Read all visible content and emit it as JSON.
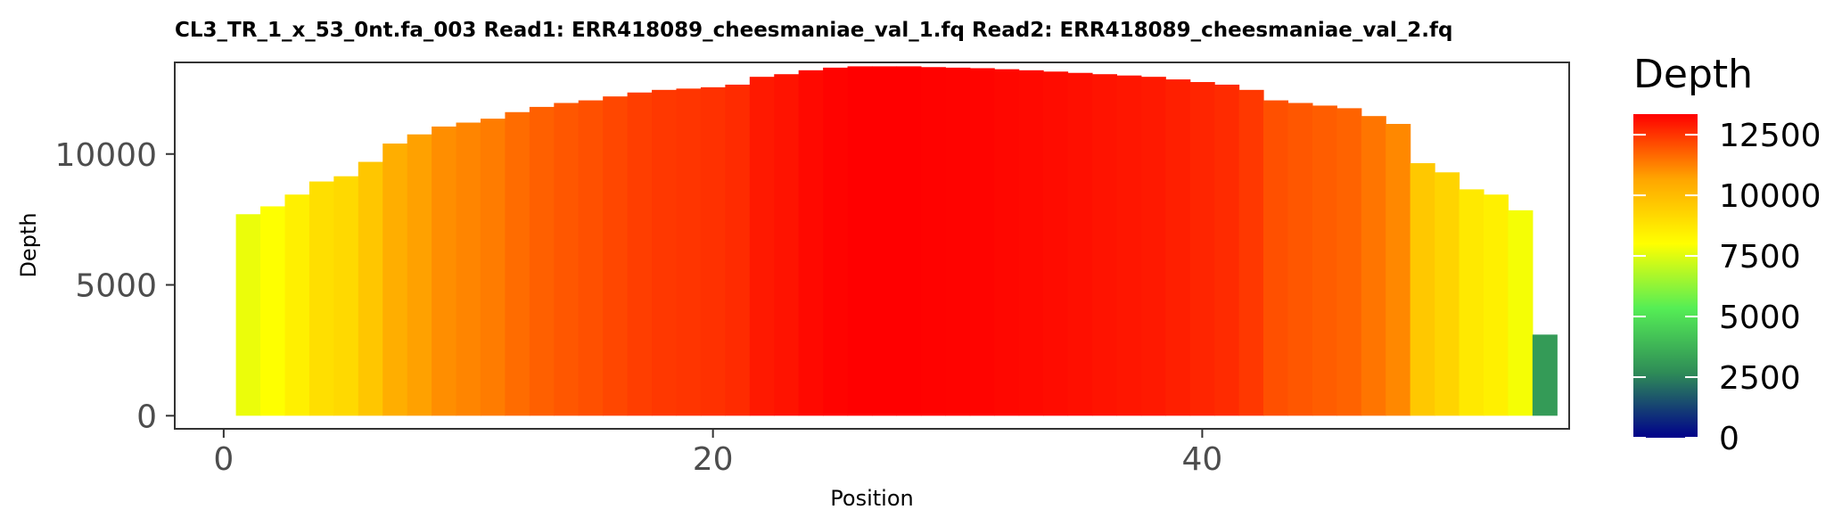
{
  "chart_data": {
    "type": "bar",
    "title": "CL3_TR_1_x_53_0nt.fa_003   Read1: ERR418089_cheesmaniae_val_1.fq   Read2: ERR418089_cheesmaniae_val_2.fq",
    "xlabel": "Position",
    "ylabel": "Depth",
    "xlim": [
      -2,
      55
    ],
    "ylim": [
      -500,
      13500
    ],
    "xticks": [
      0,
      20,
      40
    ],
    "yticks": [
      0,
      5000,
      10000
    ],
    "x": [
      1,
      2,
      3,
      4,
      5,
      6,
      7,
      8,
      9,
      10,
      11,
      12,
      13,
      14,
      15,
      16,
      17,
      18,
      19,
      20,
      21,
      22,
      23,
      24,
      25,
      26,
      27,
      28,
      29,
      30,
      31,
      32,
      33,
      34,
      35,
      36,
      37,
      38,
      39,
      40,
      41,
      42,
      43,
      44,
      45,
      46,
      47,
      48,
      49,
      50,
      51,
      52,
      53,
      54
    ],
    "values": [
      7700,
      8000,
      8450,
      8950,
      9150,
      9700,
      10400,
      10750,
      11050,
      11200,
      11350,
      11600,
      11800,
      11950,
      12050,
      12200,
      12350,
      12450,
      12500,
      12550,
      12650,
      12950,
      13050,
      13200,
      13300,
      13350,
      13350,
      13350,
      13320,
      13300,
      13280,
      13240,
      13200,
      13150,
      13100,
      13050,
      13000,
      12950,
      12850,
      12750,
      12650,
      12450,
      12050,
      11950,
      11850,
      11750,
      11450,
      11150,
      9650,
      9300,
      8650,
      8450,
      7850,
      3100
    ],
    "grid": false,
    "legend": {
      "title": "Depth",
      "position": "right",
      "breaks": [
        0,
        2500,
        5000,
        7500,
        10000,
        12500
      ],
      "range": [
        0,
        13350
      ],
      "colors": [
        "#00008b",
        "#2e8b57",
        "#55ee55",
        "#ffff00",
        "#ffa500",
        "#ff0000"
      ]
    }
  }
}
